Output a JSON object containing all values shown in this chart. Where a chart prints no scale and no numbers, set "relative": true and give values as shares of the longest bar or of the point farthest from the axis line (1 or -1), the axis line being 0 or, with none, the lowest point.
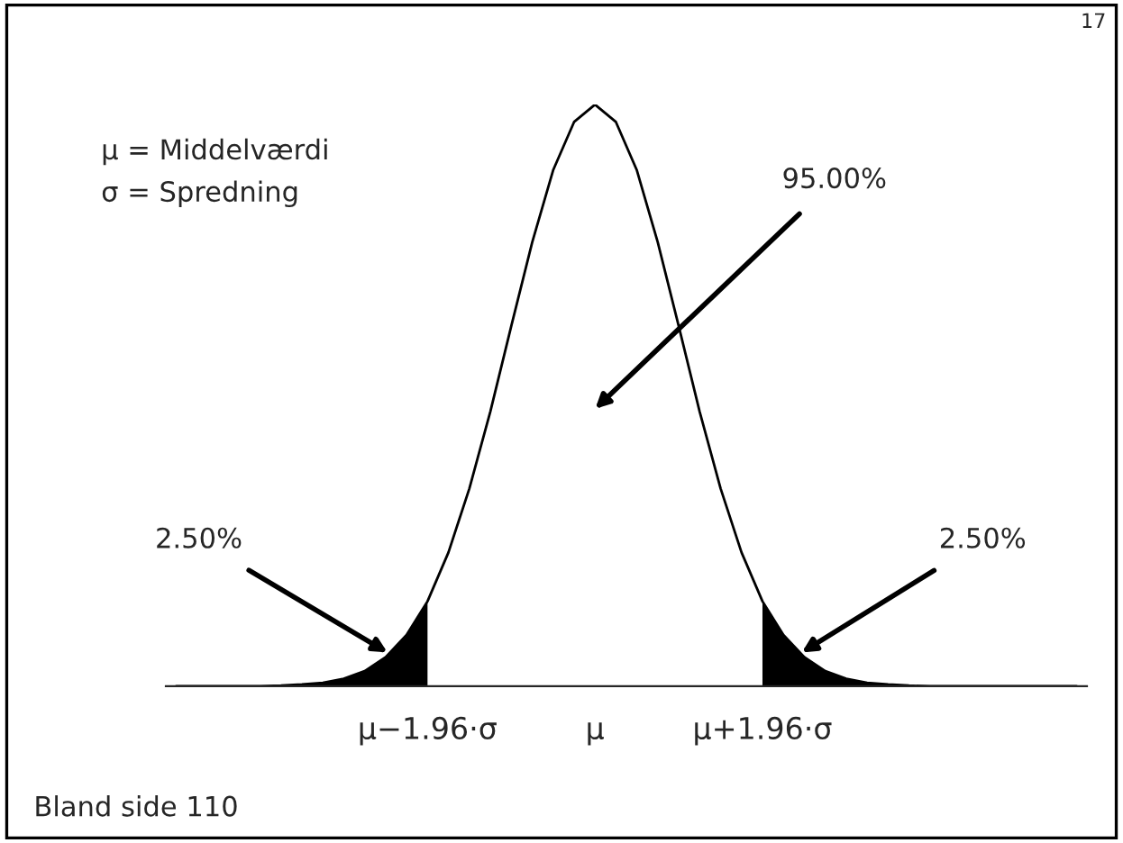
{
  "chart_data": {
    "type": "line",
    "relative": true,
    "tick_labels": "x",
    "categories": [
      null,
      null,
      null,
      null,
      null,
      null,
      null,
      null,
      null,
      null,
      null,
      null,
      "μ−1.96·σ",
      null,
      null,
      null,
      null,
      null,
      null,
      null,
      "μ",
      null,
      null,
      null,
      null,
      null,
      null,
      null,
      "μ+1.96·σ",
      null,
      null,
      null,
      null,
      null,
      null,
      null,
      null,
      null,
      null,
      null,
      null,
      null,
      null,
      null
    ],
    "series": [
      {
        "color": "#000000",
        "values": [
          0,
          0,
          0,
          0,
          0,
          0.001,
          0.003,
          0.006,
          0.013,
          0.026,
          0.05,
          0.088,
          0.146,
          0.23,
          0.34,
          0.472,
          0.619,
          0.763,
          0.887,
          0.97,
          1,
          0.97,
          0.887,
          0.763,
          0.619,
          0.472,
          0.34,
          0.23,
          0.146,
          0.088,
          0.05,
          0.026,
          0.013,
          0.006,
          0.003,
          0.001,
          0,
          0,
          0,
          0,
          0,
          0,
          0,
          0
        ]
      },
      {
        "type": "area",
        "color": "#000000",
        "values": [
          0,
          0,
          0,
          0,
          0,
          0.001,
          0.003,
          0.006,
          0.013,
          0.026,
          0.05,
          0.088,
          0.146,
          null,
          null,
          null,
          null,
          null,
          null,
          null,
          null,
          null,
          null,
          null,
          null,
          null,
          null,
          null,
          null,
          null,
          null,
          null,
          null,
          null,
          null,
          null,
          null,
          null,
          null,
          null,
          null,
          null,
          null,
          null
        ]
      },
      {
        "type": "area",
        "color": "#000000",
        "values": [
          null,
          null,
          null,
          null,
          null,
          null,
          null,
          null,
          null,
          null,
          null,
          null,
          null,
          null,
          null,
          null,
          null,
          null,
          null,
          null,
          null,
          null,
          null,
          null,
          null,
          null,
          null,
          null,
          0.146,
          0.088,
          0.05,
          0.026,
          0.013,
          0.006,
          0.003,
          0.001,
          0,
          0,
          0,
          0,
          0,
          0,
          0,
          0
        ]
      }
    ],
    "annotations": [
      "17",
      "μ = Middelværdi",
      "σ = Spredning",
      "Bland side 110",
      "95.00%",
      "2.50%",
      "2.50%"
    ]
  }
}
